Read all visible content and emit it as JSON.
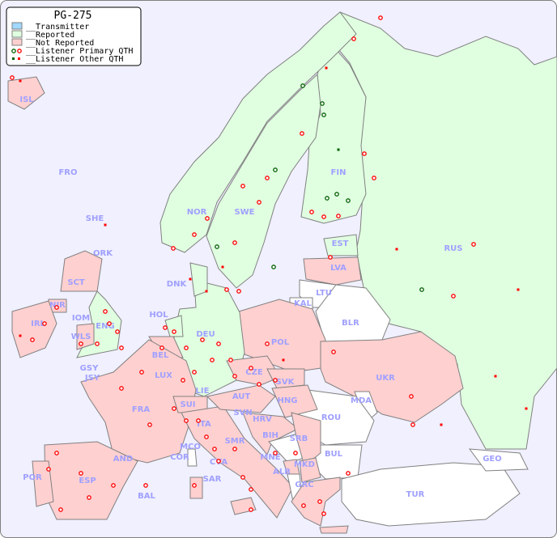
{
  "title": "PG-275",
  "colors": {
    "sea": "#f0f0ff",
    "transmitter": "#a0d8ff",
    "reported": "#e0ffe0",
    "not_reported": "#ffd0d0",
    "none": "#ffffff",
    "primary_other": "#ff0000",
    "reported_listener": "#006000"
  },
  "legend": [
    {
      "label": "__Transmitter",
      "type": "swatch",
      "color": "#a0d8ff"
    },
    {
      "label": "__Reported",
      "type": "swatch",
      "color": "#e0ffe0"
    },
    {
      "label": "__Not Reported",
      "type": "swatch",
      "color": "#ffd0d0"
    },
    {
      "label": "__Listener Primary QTH",
      "type": "circle"
    },
    {
      "label": "__Listener Other QTH",
      "type": "square"
    }
  ],
  "countries": {
    "reported": [
      "NOR",
      "SWE",
      "FIN",
      "RUS",
      "EST",
      "ENG",
      "DEU",
      "DNK",
      "HOL",
      "LIE"
    ],
    "not_reported": [
      "ISL",
      "IRL",
      "NIR",
      "SCT",
      "WLS",
      "FRA",
      "BEL",
      "LUX",
      "ESP",
      "POR",
      "ITA",
      "SUI",
      "AUT",
      "CZE",
      "SVK",
      "HNG",
      "POL",
      "LVA",
      "UKR",
      "SVN",
      "HRV",
      "SER",
      "MNE",
      "MKD",
      "GRC",
      "SAR",
      "BAL",
      "AND",
      "MCO",
      "SMR",
      "CVA"
    ],
    "none": [
      "LTU",
      "KAL",
      "BLR",
      "MDA",
      "ROU",
      "BUL",
      "TUR",
      "GEO",
      "BIH",
      "ALB",
      "COR"
    ]
  },
  "labels": [
    "ISL",
    "FRO",
    "SHE",
    "ORK",
    "NOR",
    "SWE",
    "FIN",
    "EST",
    "RUS",
    "LVA",
    "LTU",
    "KAL",
    "BLR",
    "DNK",
    "HOL",
    "DEU",
    "POL",
    "UKR",
    "SCT",
    "NIR",
    "IRL",
    "IOM",
    "WLS",
    "ENG",
    "GSY",
    "JSY",
    "BEL",
    "LUX",
    "CZE",
    "SVK",
    "LIE",
    "FRA",
    "SUI",
    "AUT",
    "HNG",
    "MDA",
    "ROU",
    "SVN",
    "HRV",
    "SRB",
    "ITA",
    "BIH",
    "MCO",
    "COR",
    "SMR",
    "CVA",
    "MNE",
    "BUL",
    "GEO",
    "AND",
    "ALB",
    "MKD",
    "POR",
    "ESP",
    "SAR",
    "BAL",
    "GRC",
    "TUR"
  ]
}
